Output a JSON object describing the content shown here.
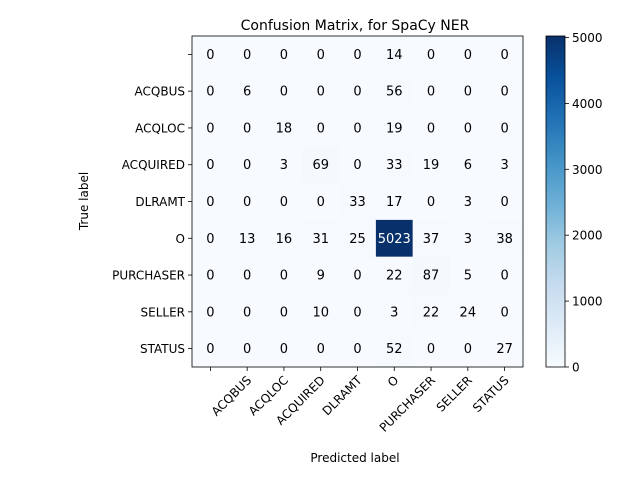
{
  "chart_data": {
    "type": "heatmap",
    "title": "Confusion Matrix, for SpaCy NER",
    "xlabel": "Predicted label",
    "ylabel": "True label",
    "row_labels": [
      "",
      "ACQBUS",
      "ACQLOC",
      "ACQUIRED",
      "DLRAMT",
      "O",
      "PURCHASER",
      "SELLER",
      "STATUS"
    ],
    "col_labels": [
      "",
      "ACQBUS",
      "ACQLOC",
      "ACQUIRED",
      "DLRAMT",
      "O",
      "PURCHASER",
      "SELLER",
      "STATUS"
    ],
    "values": [
      [
        0,
        0,
        0,
        0,
        0,
        14,
        0,
        0,
        0
      ],
      [
        0,
        6,
        0,
        0,
        0,
        56,
        0,
        0,
        0
      ],
      [
        0,
        0,
        18,
        0,
        0,
        19,
        0,
        0,
        0
      ],
      [
        0,
        0,
        3,
        69,
        0,
        33,
        19,
        6,
        3
      ],
      [
        0,
        0,
        0,
        0,
        33,
        17,
        0,
        3,
        0
      ],
      [
        0,
        13,
        16,
        31,
        25,
        5023,
        37,
        3,
        38
      ],
      [
        0,
        0,
        0,
        9,
        0,
        22,
        87,
        5,
        0
      ],
      [
        0,
        0,
        0,
        10,
        0,
        3,
        22,
        24,
        0
      ],
      [
        0,
        0,
        0,
        0,
        0,
        52,
        0,
        0,
        27
      ]
    ],
    "colorbar": {
      "min": 0,
      "max": 5023,
      "ticks": [
        0,
        1000,
        2000,
        3000,
        4000,
        5000
      ],
      "colormap": "Blues"
    },
    "grid": false,
    "legend": "none"
  }
}
